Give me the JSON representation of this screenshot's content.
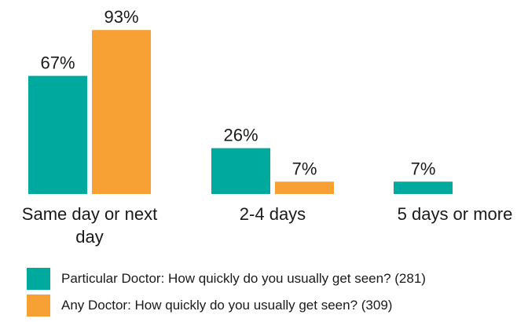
{
  "chart_data": {
    "type": "bar",
    "categories": [
      "Same day or next day",
      "2-4 days",
      "5 days or more"
    ],
    "category_lines": [
      [
        "Same day or next",
        "day"
      ],
      [
        "2-4 days"
      ],
      [
        "5 days or more"
      ]
    ],
    "series": [
      {
        "name": "Particular Doctor: How quickly do you usually get seen? (281)",
        "values": [
          67,
          26,
          7
        ],
        "value_labels": [
          "67%",
          "26%",
          "7%"
        ],
        "color": "#00A99D"
      },
      {
        "name": "Any Doctor: How quickly do you usually get seen? (309)",
        "values": [
          93,
          7,
          null
        ],
        "value_labels": [
          "93%",
          "7%",
          ""
        ],
        "color": "#F7A033"
      }
    ],
    "ylim": [
      0,
      100
    ],
    "grid": false,
    "legend_position": "bottom-left",
    "title": "",
    "xlabel": "",
    "ylabel": ""
  }
}
